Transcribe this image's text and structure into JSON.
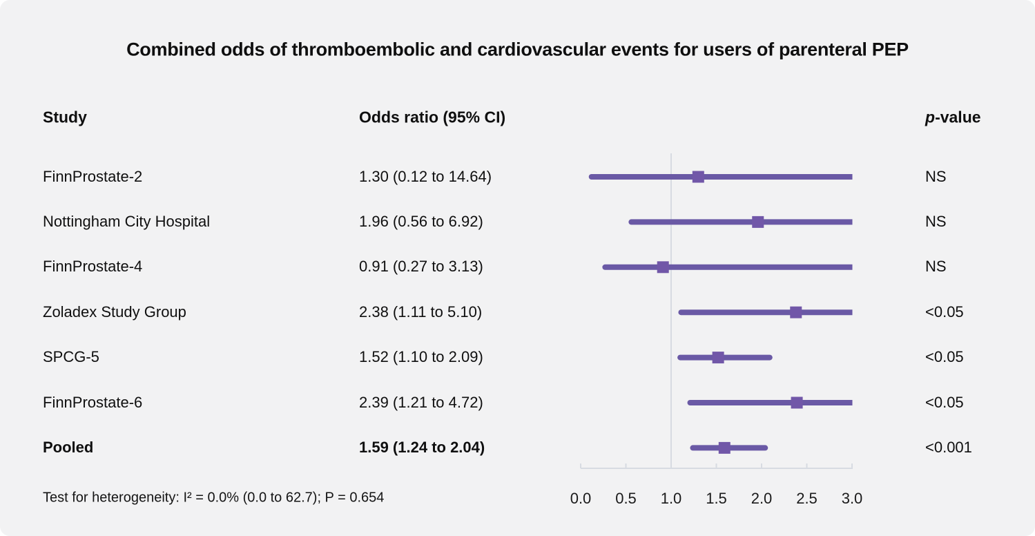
{
  "title": "Combined odds of thromboembolic and cardiovascular events for users of parenteral PEP",
  "header": {
    "study": "Study",
    "or": "Odds ratio (95% CI)",
    "p_italic": "p",
    "p_rest": "-value"
  },
  "footnote": {
    "text": "Test for heterogeneity: I² = 0.0% (0.0 to 62.7); P = 0.654"
  },
  "colors": {
    "background": "#f2f2f3",
    "ci_line": "#6a59a5",
    "marker": "#7157a8",
    "axis": "#d7dbe2",
    "reference_line": "#d7dbe2",
    "text": "#0f0f0f"
  },
  "chart_data": {
    "type": "forest",
    "title": "Combined odds of thromboembolic and cardiovascular events for users of parenteral PEP",
    "xlabel": "Odds ratio",
    "xlim": [
      0.0,
      3.0
    ],
    "tick_step": 0.5,
    "tick_labels": [
      "0.0",
      "0.5",
      "1.0",
      "1.5",
      "2.0",
      "2.5",
      "3.0"
    ],
    "reference_line": 1.0,
    "grid": false,
    "legend": "none",
    "studies": [
      {
        "label": "FinnProstate-2",
        "or_ci": "1.30 (0.12 to 14.64)",
        "or": 1.3,
        "lo": 0.12,
        "hi": 14.64,
        "p": "NS",
        "pooled": false
      },
      {
        "label": "Nottingham City Hospital",
        "or_ci": "1.96 (0.56 to 6.92)",
        "or": 1.96,
        "lo": 0.56,
        "hi": 6.92,
        "p": "NS",
        "pooled": false
      },
      {
        "label": "FinnProstate-4",
        "or_ci": "0.91 (0.27 to 3.13)",
        "or": 0.91,
        "lo": 0.27,
        "hi": 3.13,
        "p": "NS",
        "pooled": false
      },
      {
        "label": "Zoladex Study Group",
        "or_ci": "2.38 (1.11 to 5.10)",
        "or": 2.38,
        "lo": 1.11,
        "hi": 5.1,
        "p": "<0.05",
        "pooled": false
      },
      {
        "label": "SPCG-5",
        "or_ci": "1.52 (1.10 to 2.09)",
        "or": 1.52,
        "lo": 1.1,
        "hi": 2.09,
        "p": "<0.05",
        "pooled": false
      },
      {
        "label": "FinnProstate-6",
        "or_ci": "2.39 (1.21 to 4.72)",
        "or": 2.39,
        "lo": 1.21,
        "hi": 4.72,
        "p": "<0.05",
        "pooled": false
      },
      {
        "label": "Pooled",
        "or_ci": "1.59 (1.24 to 2.04)",
        "or": 1.59,
        "lo": 1.24,
        "hi": 2.04,
        "p": "<0.001",
        "pooled": true
      }
    ],
    "heterogeneity": "Test for heterogeneity: I² = 0.0% (0.0 to 62.7); P = 0.654"
  }
}
